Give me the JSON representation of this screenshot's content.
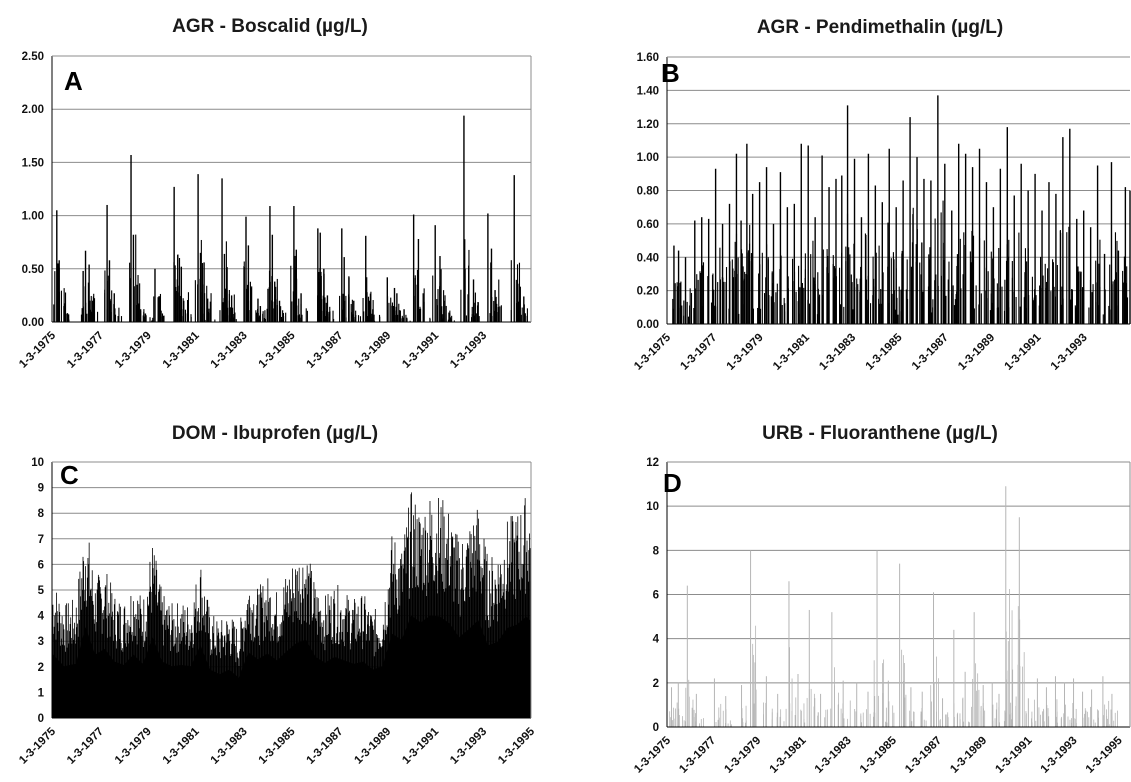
{
  "chart_data": [
    {
      "type": "bar",
      "panel": "A",
      "title": "AGR - Boscalid (µg/L)",
      "xlabel": "",
      "ylabel": "",
      "ylim": [
        0,
        2.5
      ],
      "yticks": [
        "0.00",
        "0.50",
        "1.00",
        "1.50",
        "2.00",
        "2.50"
      ],
      "grid": true,
      "xrange_years": [
        1975.0,
        1995.0
      ],
      "xticks": [
        "1-3-1975",
        "1-3-1977",
        "1-3-1979",
        "1-3-1981",
        "1-3-1983",
        "1-3-1985",
        "1-3-1987",
        "1-3-1989",
        "1-3-1991",
        "1-3-1993"
      ],
      "bar_color": "#000000",
      "series": [
        {
          "x": [
            1975.2,
            1975.3,
            1975.5,
            1976.3,
            1976.4,
            1976.55,
            1976.7,
            1977.3,
            1977.4,
            1977.6,
            1978.3,
            1978.4,
            1978.55,
            1978.7,
            1978.9,
            1979.3,
            1979.5,
            1980.1,
            1980.25,
            1980.4,
            1980.5,
            1981.1,
            1981.2,
            1981.35,
            1981.5,
            1982.1,
            1982.2,
            1982.3,
            1982.5,
            1983.1,
            1983.2,
            1983.6,
            1983.7,
            1984.1,
            1984.2,
            1984.3,
            1984.5,
            1985.1,
            1985.2,
            1985.4,
            1986.1,
            1986.2,
            1986.35,
            1986.5,
            1987.1,
            1987.2,
            1987.4,
            1987.6,
            1988.1,
            1988.15,
            1988.25,
            1988.4,
            1989.0,
            1989.3,
            1989.4,
            1989.7,
            1990.1,
            1990.3,
            1990.5,
            1991.0,
            1991.2,
            1991.4,
            1991.6,
            1992.2,
            1992.4,
            1992.6,
            1993.2,
            1993.35,
            1993.5,
            1994.3,
            1994.45,
            1994.7
          ],
          "y": [
            1.05,
            0.58,
            0.15,
            0.48,
            0.67,
            0.54,
            0.2,
            1.1,
            0.58,
            0.27,
            1.57,
            0.82,
            0.35,
            0.12,
            0.08,
            0.5,
            0.22,
            1.27,
            0.63,
            0.52,
            0.2,
            1.39,
            0.65,
            0.56,
            0.22,
            1.35,
            0.64,
            0.5,
            0.25,
            0.99,
            0.72,
            0.22,
            0.15,
            1.09,
            0.82,
            0.38,
            0.2,
            1.09,
            0.68,
            0.27,
            0.88,
            0.84,
            0.5,
            0.25,
            0.88,
            0.61,
            0.42,
            0.2,
            0.81,
            0.28,
            0.2,
            0.12,
            0.42,
            0.32,
            0.27,
            0.12,
            1.01,
            0.78,
            0.27,
            0.91,
            0.62,
            0.2,
            0.08,
            1.94,
            0.53,
            0.4,
            1.02,
            0.69,
            0.3,
            1.38,
            0.36,
            0.24
          ]
        }
      ]
    },
    {
      "type": "bar",
      "panel": "B",
      "title": "AGR - Pendimethalin (µg/L)",
      "xlabel": "",
      "ylabel": "",
      "ylim": [
        0,
        1.6
      ],
      "yticks": [
        "0.00",
        "0.20",
        "0.40",
        "0.60",
        "0.80",
        "1.00",
        "1.20",
        "1.40",
        "1.60"
      ],
      "grid": true,
      "xrange_years": [
        1975.0,
        1995.0
      ],
      "xticks": [
        "1-3-1975",
        "1-3-1977",
        "1-3-1979",
        "1-3-1981",
        "1-3-1983",
        "1-3-1985",
        "1-3-1987",
        "1-3-1989",
        "1-3-1991",
        "1-3-1993"
      ],
      "bar_color": "#000000",
      "series": [
        {
          "x": [
            1975.3,
            1975.5,
            1975.8,
            1976.2,
            1976.5,
            1976.8,
            1977.1,
            1977.4,
            1977.7,
            1978.0,
            1978.2,
            1978.45,
            1978.7,
            1979.0,
            1979.3,
            1979.6,
            1979.9,
            1980.2,
            1980.5,
            1980.8,
            1981.1,
            1981.4,
            1981.7,
            1982.0,
            1982.3,
            1982.55,
            1982.8,
            1983.1,
            1983.4,
            1983.7,
            1984.0,
            1984.3,
            1984.6,
            1984.9,
            1985.2,
            1985.5,
            1985.8,
            1986.1,
            1986.4,
            1986.7,
            1987.0,
            1987.3,
            1987.6,
            1987.9,
            1988.2,
            1988.5,
            1988.8,
            1989.1,
            1989.4,
            1989.7,
            1990.0,
            1990.3,
            1990.6,
            1990.9,
            1991.2,
            1991.5,
            1991.8,
            1992.1,
            1992.4,
            1992.7,
            1993.0,
            1993.3,
            1993.6,
            1993.9,
            1994.2,
            1994.5,
            1994.8,
            1995.0
          ],
          "y": [
            0.47,
            0.44,
            0.4,
            0.62,
            0.64,
            0.63,
            0.93,
            0.6,
            0.72,
            1.02,
            0.62,
            1.08,
            0.78,
            0.85,
            0.94,
            0.6,
            0.91,
            0.7,
            0.72,
            1.08,
            1.07,
            0.64,
            1.01,
            0.82,
            0.87,
            0.89,
            1.31,
            0.99,
            0.64,
            1.02,
            0.83,
            0.73,
            1.05,
            0.7,
            0.86,
            1.24,
            1.0,
            0.87,
            0.86,
            1.37,
            0.96,
            0.68,
            1.08,
            1.02,
            0.94,
            1.05,
            0.85,
            0.7,
            0.93,
            1.18,
            0.77,
            0.96,
            0.8,
            0.9,
            0.68,
            0.85,
            0.78,
            1.12,
            1.17,
            0.63,
            0.68,
            0.58,
            0.95,
            0.42,
            0.97,
            0.44,
            0.82,
            0.8
          ]
        }
      ]
    },
    {
      "type": "bar",
      "panel": "C",
      "title": "DOM - Ibuprofen (µg/L)",
      "xlabel": "",
      "ylabel": "",
      "ylim": [
        0,
        10
      ],
      "yticks": [
        "0",
        "1",
        "2",
        "3",
        "4",
        "5",
        "6",
        "7",
        "8",
        "9",
        "10"
      ],
      "grid": true,
      "xrange_years": [
        1975.0,
        1995.0
      ],
      "xticks": [
        "1-3-1975",
        "1-3-1977",
        "1-3-1979",
        "1-3-1981",
        "1-3-1983",
        "1-3-1985",
        "1-3-1987",
        "1-3-1989",
        "1-3-1991",
        "1-3-1993",
        "1-3-1995"
      ],
      "bar_color": "#000000",
      "envelope": {
        "x": [
          1975.0,
          1975.5,
          1976.0,
          1976.4,
          1976.8,
          1977.2,
          1977.6,
          1978.0,
          1978.4,
          1978.8,
          1979.2,
          1979.6,
          1980.0,
          1980.4,
          1980.8,
          1981.2,
          1981.6,
          1982.0,
          1982.4,
          1982.8,
          1983.2,
          1983.6,
          1984.0,
          1984.4,
          1984.8,
          1985.2,
          1985.6,
          1986.0,
          1986.4,
          1986.8,
          1987.2,
          1987.6,
          1988.0,
          1988.4,
          1988.8,
          1989.2,
          1989.6,
          1990.0,
          1990.4,
          1990.8,
          1991.2,
          1991.6,
          1992.0,
          1992.4,
          1992.8,
          1993.2,
          1993.6,
          1994.0,
          1994.4,
          1994.8,
          1995.0
        ],
        "y": [
          5.6,
          4.5,
          4.7,
          7.9,
          5.5,
          6.0,
          4.9,
          4.6,
          5.5,
          4.7,
          7.0,
          4.9,
          4.5,
          4.6,
          4.5,
          6.3,
          4.2,
          3.8,
          4.2,
          3.5,
          5.7,
          5.1,
          5.6,
          5.0,
          5.8,
          6.5,
          6.8,
          5.3,
          4.8,
          5.3,
          5.0,
          4.7,
          4.9,
          4.2,
          4.5,
          7.3,
          6.8,
          8.9,
          8.3,
          8.9,
          8.8,
          8.2,
          7.0,
          7.7,
          8.5,
          6.3,
          6.6,
          7.8,
          8.1,
          8.8,
          8.4
        ]
      }
    },
    {
      "type": "bar",
      "panel": "D",
      "title": "URB - Fluoranthene (µg/L)",
      "xlabel": "",
      "ylabel": "",
      "ylim": [
        0,
        12
      ],
      "yticks": [
        "0",
        "2",
        "4",
        "6",
        "8",
        "10",
        "12"
      ],
      "grid": true,
      "xrange_years": [
        1975.0,
        1995.0
      ],
      "xticks": [
        "1-3-1975",
        "1-3-1977",
        "1-3-1979",
        "1-3-1981",
        "1-3-1983",
        "1-3-1985",
        "1-3-1987",
        "1-3-1989",
        "1-3-1991",
        "1-3-1993",
        "1-3-1995"
      ],
      "bar_color": "#b5b5b5",
      "series": [
        {
          "x": [
            1975.2,
            1975.5,
            1975.9,
            1976.3,
            1977.1,
            1977.6,
            1978.3,
            1978.7,
            1979.4,
            1979.9,
            1980.4,
            1980.8,
            1981.3,
            1981.8,
            1982.3,
            1982.8,
            1983.4,
            1983.9,
            1984.3,
            1984.8,
            1985.3,
            1985.8,
            1986.3,
            1986.8,
            1987.2,
            1987.7,
            1988.2,
            1988.6,
            1989.0,
            1989.4,
            1989.7,
            1990.0,
            1990.3,
            1990.6,
            1991.0,
            1991.4,
            1991.8,
            1992.2,
            1992.6,
            1993.0,
            1993.4,
            1993.8,
            1994.3,
            1994.7
          ],
          "y": [
            1.8,
            2.0,
            6.4,
            1.5,
            2.2,
            1.4,
            1.9,
            8.0,
            2.3,
            1.5,
            6.6,
            2.4,
            5.3,
            1.5,
            5.2,
            2.1,
            2.0,
            1.6,
            8.0,
            2.1,
            7.4,
            1.8,
            1.6,
            6.1,
            1.3,
            4.4,
            2.5,
            5.2,
            1.9,
            2.0,
            1.5,
            10.9,
            2.6,
            9.5,
            1.3,
            2.2,
            1.8,
            2.3,
            2.0,
            2.2,
            1.6,
            1.7,
            2.3,
            1.5
          ]
        }
      ]
    }
  ]
}
